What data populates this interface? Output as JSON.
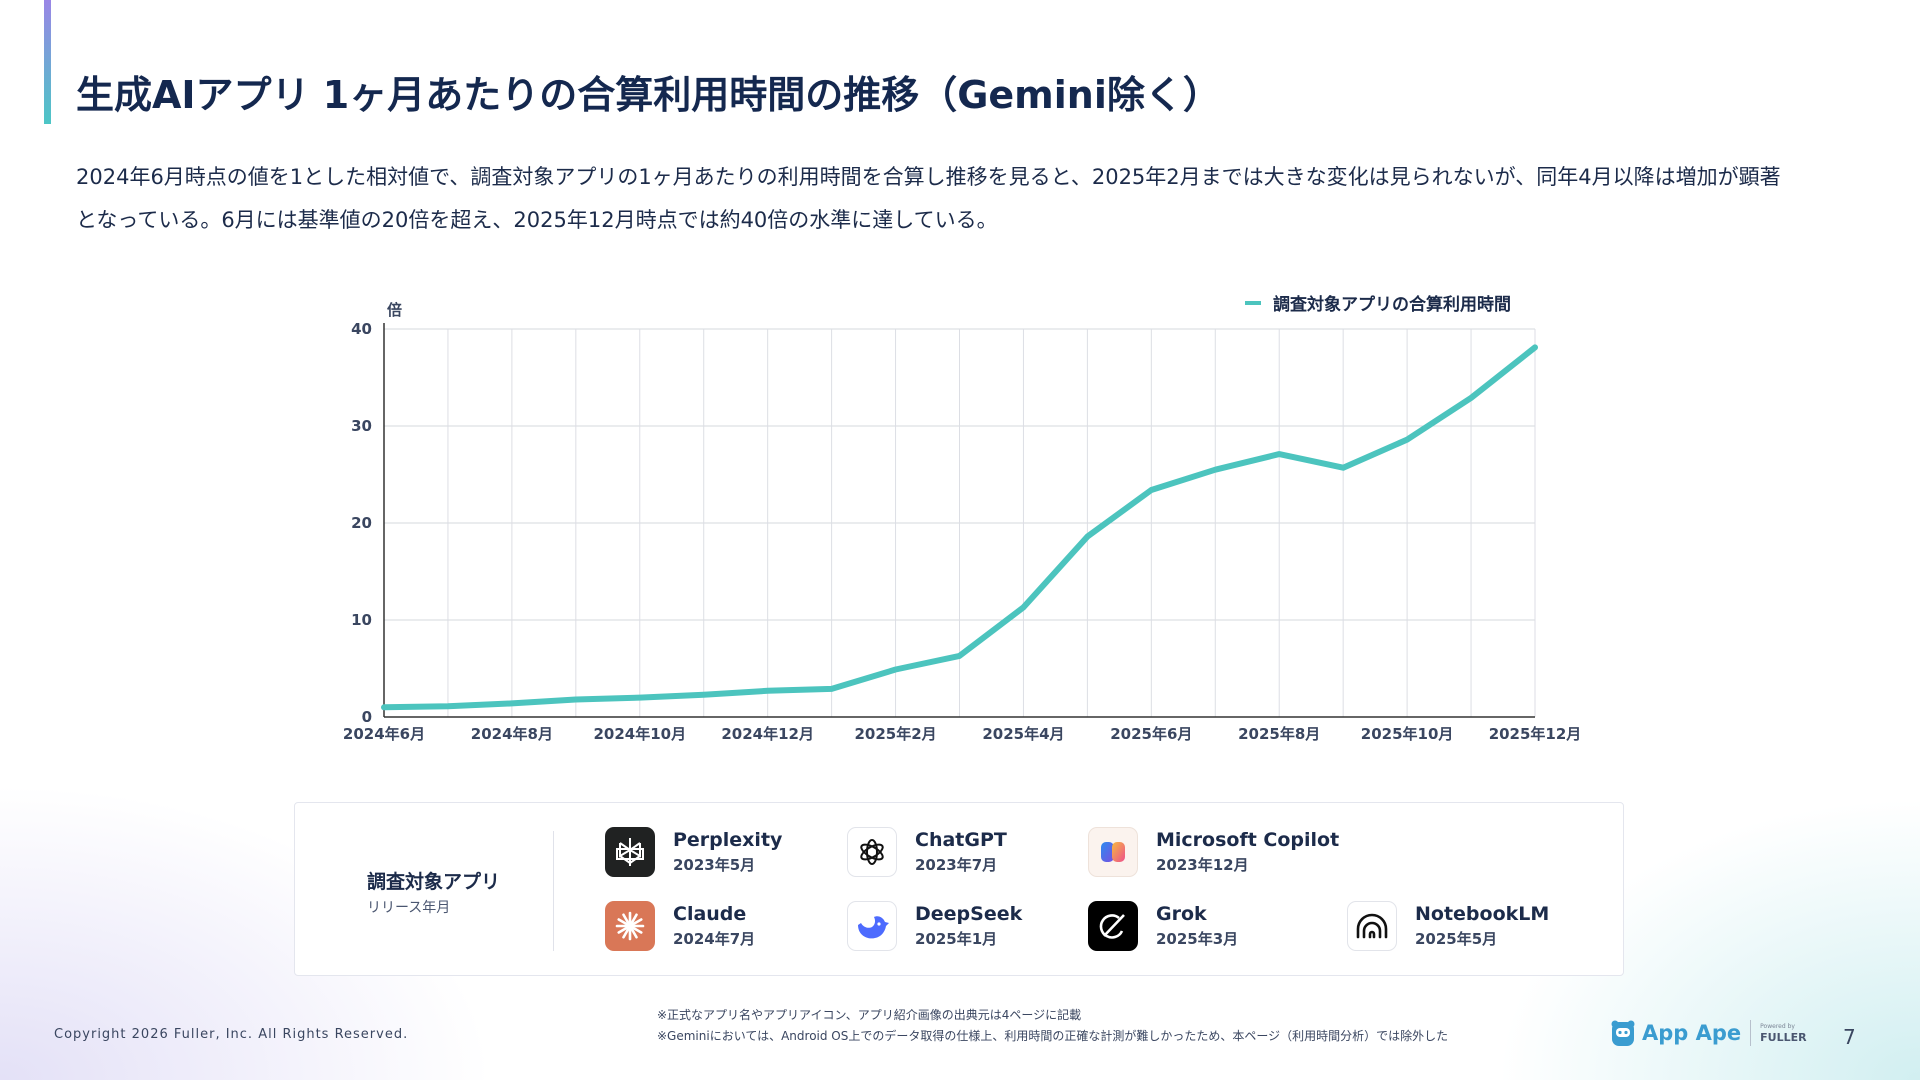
{
  "title": "生成AIアプリ 1ヶ月あたりの合算利用時間の推移（Gemini除く）",
  "description": "2024年6月時点の値を1とした相対値で、調査対象アプリの1ヶ月あたりの利用時間を合算し推移を見ると、2025年2月までは大きな変化は見られないが、同年4月以降は増加が顕著となっている。6月には基準値の20倍を超え、2025年12月時点では約40倍の水準に達している。",
  "chart_data": {
    "type": "line",
    "title": "",
    "xlabel": "",
    "ylabel": "倍",
    "ylim": [
      0,
      40
    ],
    "yticks": [
      0,
      10,
      20,
      30,
      40
    ],
    "x": [
      "2024年6月",
      "2024年7月",
      "2024年8月",
      "2024年9月",
      "2024年10月",
      "2024年11月",
      "2024年12月",
      "2025年1月",
      "2025年2月",
      "2025年3月",
      "2025年4月",
      "2025年5月",
      "2025年6月",
      "2025年7月",
      "2025年8月",
      "2025年9月",
      "2025年10月",
      "2025年11月",
      "2025年12月"
    ],
    "xtick_labels": [
      "2024年6月",
      "2024年8月",
      "2024年10月",
      "2024年12月",
      "2025年2月",
      "2025年4月",
      "2025年6月",
      "2025年8月",
      "2025年10月",
      "2025年12月"
    ],
    "series": [
      {
        "name": "調査対象アプリの合算利用時間",
        "color": "#4cc4be",
        "values": [
          1.0,
          1.1,
          1.4,
          1.8,
          2.0,
          2.3,
          2.7,
          2.9,
          4.9,
          6.3,
          11.3,
          18.6,
          23.4,
          25.5,
          27.1,
          25.7,
          28.6,
          32.9,
          38.1
        ]
      }
    ],
    "grid": true,
    "legend_position": "top-right"
  },
  "apps_panel": {
    "title": "調査対象アプリ",
    "subtitle": "リリース年月",
    "apps": [
      {
        "name": "Perplexity",
        "date": "2023年5月",
        "icon": "perplexity-icon"
      },
      {
        "name": "ChatGPT",
        "date": "2023年7月",
        "icon": "chatgpt-icon"
      },
      {
        "name": "Microsoft Copilot",
        "date": "2023年12月",
        "icon": "copilot-icon"
      },
      {
        "name": "Claude",
        "date": "2024年7月",
        "icon": "claude-icon"
      },
      {
        "name": "DeepSeek",
        "date": "2025年1月",
        "icon": "deepseek-icon"
      },
      {
        "name": "Grok",
        "date": "2025年3月",
        "icon": "grok-icon"
      },
      {
        "name": "NotebookLM",
        "date": "2025年5月",
        "icon": "notebooklm-icon"
      }
    ]
  },
  "footer": {
    "copyright": "Copyright 2026 Fuller, Inc. All Rights Reserved.",
    "note1": "※正式なアプリ名やアプリアイコン、アプリ紹介画像の出典元は4ページに記載",
    "note2": "※Geminiにおいては、Android OS上でのデータ取得の仕様上、利用時間の正確な計測が難しかったため、本ページ（利用時間分析）では除外した",
    "brand": "App Ape",
    "powered_by": "Powered by",
    "powered_name": "FULLER",
    "page_number": "7"
  }
}
